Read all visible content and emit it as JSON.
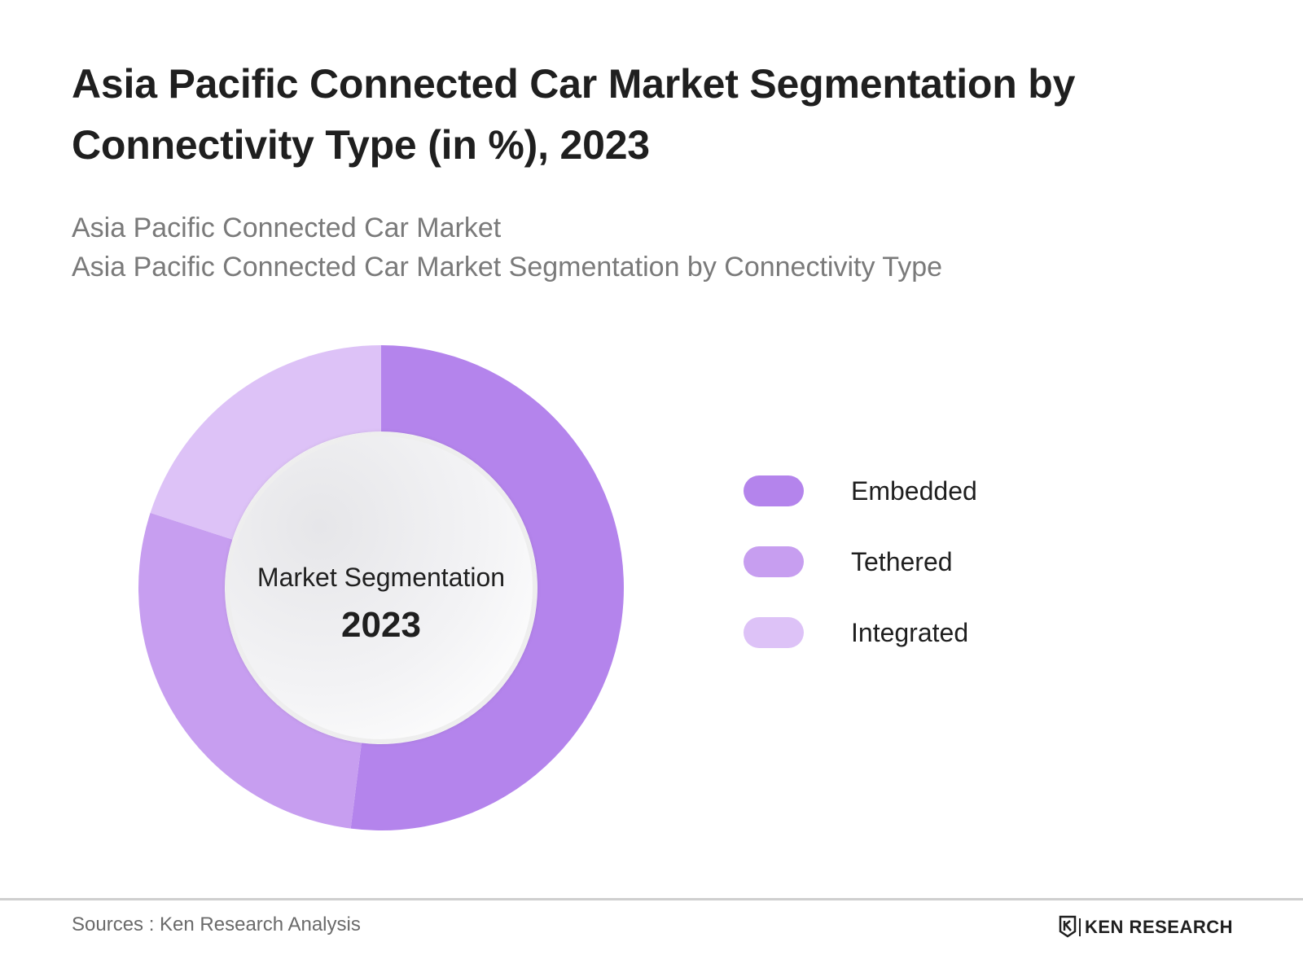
{
  "header": {
    "title": "Asia Pacific Connected Car Market Segmentation by Connectivity Type (in %), 2023",
    "subtitle_line1": "Asia Pacific Connected Car Market",
    "subtitle_line2": "Asia Pacific Connected Car Market Segmentation by Connectivity Type"
  },
  "chart_data": {
    "type": "pie",
    "variant": "donut",
    "center_label": "Market Segmentation",
    "center_value": "2023",
    "categories": [
      "Embedded",
      "Tethered",
      "Integrated"
    ],
    "values": [
      52,
      28,
      20
    ],
    "colors": [
      "#b484ec",
      "#c79ef0",
      "#ddc2f7"
    ],
    "legend_position": "right"
  },
  "footer": {
    "source": "Sources : Ken Research Analysis",
    "brand": "KEN RESEARCH",
    "brand_logo_icon": "ken-research-logo-icon"
  }
}
